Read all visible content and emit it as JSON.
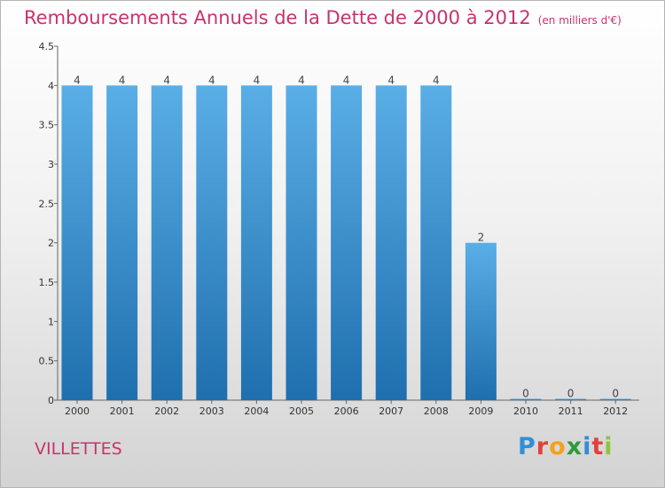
{
  "header": {
    "title": "Remboursements Annuels de la Dette de 2000 à 2012",
    "unit": "(en milliers d'€)"
  },
  "commune": "VILLETTES",
  "logo": {
    "text": "Proxiti",
    "colors": [
      "#2f8fd8",
      "#e2413b",
      "#f4a11a",
      "#2e9b3a",
      "#2f8fd8",
      "#e2413b",
      "#8cc63e"
    ]
  },
  "colors": {
    "bar_top": "#5aaee6",
    "bar_bottom": "#1f6fae",
    "axis": "#666666"
  },
  "chart_data": {
    "type": "bar",
    "title": "Remboursements Annuels de la Dette de 2000 à 2012",
    "xlabel": "",
    "ylabel": "",
    "categories": [
      "2000",
      "2001",
      "2002",
      "2003",
      "2004",
      "2005",
      "2006",
      "2007",
      "2008",
      "2009",
      "2010",
      "2011",
      "2012"
    ],
    "values": [
      4,
      4,
      4,
      4,
      4,
      4,
      4,
      4,
      4,
      2,
      0,
      0,
      0
    ],
    "ylim": [
      0,
      4.5
    ],
    "yticks": [
      0,
      0.5,
      1,
      1.5,
      2,
      2.5,
      3,
      3.5,
      4,
      4.5
    ],
    "ytick_labels": [
      "0",
      "0.5",
      "1",
      "1.5",
      "2",
      "2.5",
      "3",
      "3.5",
      "4",
      "4.5"
    ],
    "grid": false,
    "legend": "none"
  }
}
